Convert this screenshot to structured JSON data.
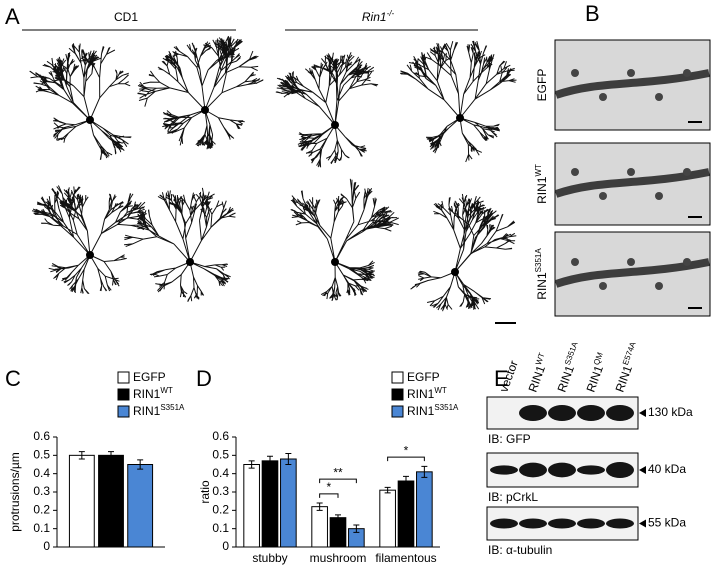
{
  "panel_labels": [
    "A",
    "B",
    "C",
    "D",
    "E"
  ],
  "panel_a": {
    "groups": [
      {
        "label": "CD1"
      },
      {
        "label": "Rin1",
        "sup": "-/-"
      }
    ]
  },
  "panel_b": {
    "rows": [
      {
        "label": "EGFP"
      },
      {
        "label": "RIN1",
        "sup": "WT"
      },
      {
        "label": "RIN1",
        "sup": "S351A"
      }
    ]
  },
  "panel_e": {
    "lanes": [
      {
        "label": "vector"
      },
      {
        "label": "RIN1",
        "sup": "WT"
      },
      {
        "label": "RIN1",
        "sup": "S351A"
      },
      {
        "label": "RIN1",
        "sup": "QM"
      },
      {
        "label": "RIN1",
        "sup": "E574A"
      }
    ],
    "blots": [
      {
        "size": "130 kDa",
        "antibody": "IB: GFP"
      },
      {
        "size": "40 kDa",
        "antibody": "IB: pCrkL"
      },
      {
        "size": "55 kDa",
        "antibody": "IB: α-tubulin"
      }
    ]
  },
  "chart_data": [
    {
      "type": "bar",
      "ylabel": "protrusions/µm",
      "categories": [
        null
      ],
      "series": [
        {
          "name": "EGFP",
          "color": "#ffffff",
          "values": [
            0.5
          ],
          "errors": [
            0.02
          ]
        },
        {
          "name": "RIN1",
          "sup": "WT",
          "color": "#000000",
          "values": [
            0.5
          ],
          "errors": [
            0.02
          ]
        },
        {
          "name": "RIN1",
          "sup": "S351A",
          "color": "#4a86d4",
          "values": [
            0.45
          ],
          "errors": [
            0.025
          ]
        }
      ],
      "ylim": [
        0,
        0.6
      ],
      "yticks": [
        0,
        0.1,
        0.2,
        0.3,
        0.4,
        0.5,
        0.6
      ]
    },
    {
      "type": "bar",
      "ylabel": "ratio",
      "categories": [
        "stubby",
        "mushroom",
        "filamentous"
      ],
      "series": [
        {
          "name": "EGFP",
          "color": "#ffffff",
          "values": [
            0.45,
            0.22,
            0.31
          ],
          "errors": [
            0.02,
            0.02,
            0.015
          ]
        },
        {
          "name": "RIN1",
          "sup": "WT",
          "color": "#000000",
          "values": [
            0.47,
            0.16,
            0.36
          ],
          "errors": [
            0.025,
            0.015,
            0.025
          ]
        },
        {
          "name": "RIN1",
          "sup": "S351A",
          "color": "#4a86d4",
          "values": [
            0.48,
            0.1,
            0.41
          ],
          "errors": [
            0.03,
            0.02,
            0.03
          ]
        }
      ],
      "annotations": [
        {
          "text": "*"
        },
        {
          "text": "**"
        },
        {
          "text": "*"
        }
      ],
      "ylim": [
        0,
        0.6
      ],
      "yticks": [
        0,
        0.1,
        0.2,
        0.3,
        0.4,
        0.5,
        0.6
      ]
    }
  ]
}
